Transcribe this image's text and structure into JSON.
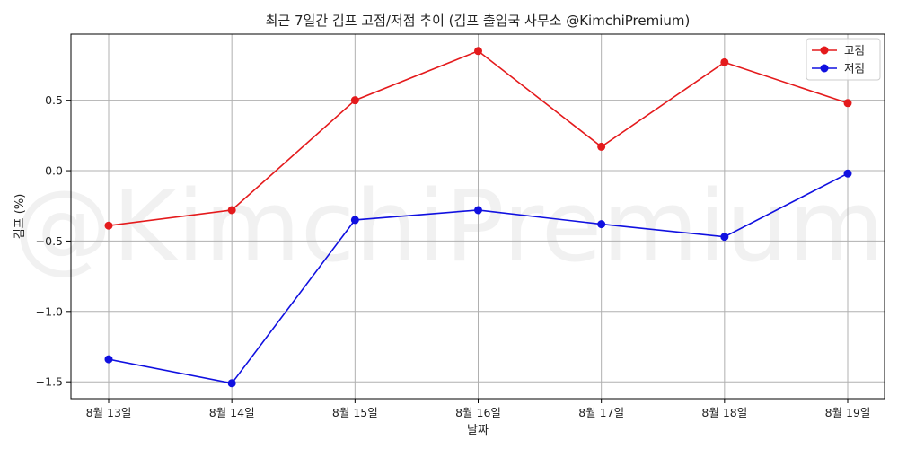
{
  "chart_data": {
    "type": "line",
    "title": "최근 7일간 김프 고점/저점 추이 (김프 출입국 사무소 @KimchiPremium)",
    "xlabel": "날짜",
    "ylabel": "김프 (%)",
    "watermark": "@KimchiPremium",
    "categories": [
      "8월 13일",
      "8월 14일",
      "8월 15일",
      "8월 16일",
      "8월 17일",
      "8월 18일",
      "8월 19일"
    ],
    "ylim": [
      -1.62,
      0.97
    ],
    "yticks": [
      {
        "value": 0.5,
        "label": "0.5"
      },
      {
        "value": 0.0,
        "label": "0.0"
      },
      {
        "value": -0.5,
        "label": "−0.5"
      },
      {
        "value": -1.0,
        "label": "−1.0"
      },
      {
        "value": -1.5,
        "label": "−1.5"
      }
    ],
    "grid": true,
    "legend_position": "top-right",
    "series": [
      {
        "name": "고점",
        "color": "#e41a1c",
        "values": [
          -0.39,
          -0.28,
          0.5,
          0.85,
          0.17,
          0.77,
          0.48
        ]
      },
      {
        "name": "저점",
        "color": "#1010e0",
        "values": [
          -1.34,
          -1.51,
          -0.35,
          -0.28,
          -0.38,
          -0.47,
          -0.02
        ]
      }
    ]
  }
}
